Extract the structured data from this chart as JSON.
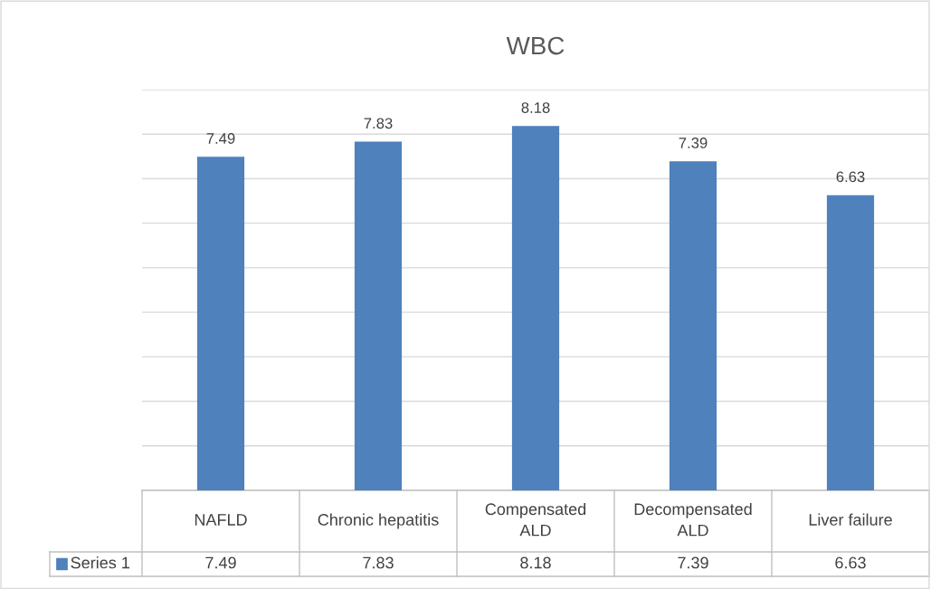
{
  "chart_data": {
    "type": "bar",
    "title": "WBC",
    "categories": [
      "NAFLD",
      "Chronic hepatitis",
      "Compensated\nALD",
      "Decompensated\nALD",
      "Liver failure"
    ],
    "series": [
      {
        "name": "Series 1",
        "color": "#4f81bd",
        "values": [
          7.49,
          7.83,
          8.18,
          7.39,
          6.63
        ],
        "value_labels": [
          "7.49",
          "7.83",
          "8.18",
          "7.39",
          "6.63"
        ]
      }
    ],
    "ylim": [
      0,
      9
    ],
    "yticks": [
      {
        "value": 0,
        "label": null
      },
      {
        "value": 1,
        "label": null
      },
      {
        "value": 2,
        "label": null
      },
      {
        "value": 3,
        "label": null
      },
      {
        "value": 4,
        "label": null
      },
      {
        "value": 5,
        "label": null
      },
      {
        "value": 6,
        "label": null
      },
      {
        "value": 7,
        "label": null
      },
      {
        "value": 8,
        "label": null
      },
      {
        "value": 9,
        "label": null
      }
    ],
    "annotations": [
      "7.49",
      "7.83",
      "8.18",
      "7.39",
      "6.63"
    ],
    "grid": "y",
    "tick_labels": "x"
  }
}
